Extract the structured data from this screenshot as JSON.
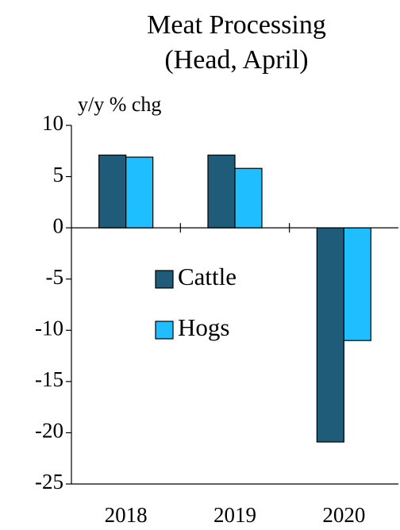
{
  "chart_data": {
    "type": "bar",
    "title": "Meat Processing",
    "subtitle": "(Head, April)",
    "y_label": "y/y % chg",
    "categories": [
      "2018",
      "2019",
      "2020"
    ],
    "series": [
      {
        "name": "Cattle",
        "color": "#1f5c7a",
        "values": [
          7.1,
          7.1,
          -20.9
        ]
      },
      {
        "name": "Hogs",
        "color": "#1fbfff",
        "values": [
          6.9,
          5.8,
          -11.0
        ]
      }
    ],
    "ylim": [
      -25,
      10
    ],
    "yticks": [
      -25,
      -20,
      -15,
      -10,
      -5,
      0,
      5,
      10
    ],
    "legend": "center-left",
    "grid": false
  }
}
